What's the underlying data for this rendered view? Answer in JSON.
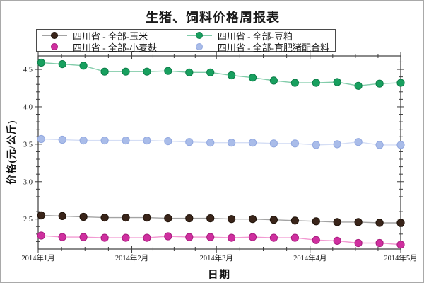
{
  "figure": {
    "title": "生猪、饲料价格周报表",
    "xlabel": "日期",
    "ylabel": "价格(元/公斤)"
  },
  "chart_data": {
    "type": "line",
    "title": "生猪、饲料价格周报表",
    "xlabel": "日期",
    "ylabel": "价格(元/公斤)",
    "x_frequency": "weekly",
    "x_days": [
      1,
      8,
      15,
      22,
      29,
      36,
      43,
      50,
      57,
      64,
      71,
      78,
      85,
      92,
      99,
      106,
      113,
      120
    ],
    "x_major_ticks": [
      {
        "day": 0,
        "label": "2014年1月"
      },
      {
        "day": 31,
        "label": "2014年2月"
      },
      {
        "day": 59,
        "label": "2014年3月"
      },
      {
        "day": 90,
        "label": "2014年4月"
      },
      {
        "day": 120,
        "label": "2014年5月"
      }
    ],
    "xlim_days": [
      0,
      120
    ],
    "ylim": [
      2.1,
      4.68
    ],
    "y_major_ticks": [
      2.5,
      3.0,
      3.5,
      4.0,
      4.5
    ],
    "y_minor_step": 0.1,
    "grid": false,
    "legend_position": "top",
    "series": [
      {
        "name": "四川省 - 全部-玉米",
        "marker_color": "#3a251a",
        "edge_color": "#1f1208",
        "line_color": "#a3a3a3",
        "values": [
          2.55,
          2.54,
          2.53,
          2.52,
          2.52,
          2.52,
          2.51,
          2.51,
          2.51,
          2.5,
          2.5,
          2.49,
          2.48,
          2.47,
          2.46,
          2.46,
          2.45,
          2.45
        ]
      },
      {
        "name": "四川省 - 全部-小麦麸",
        "marker_color": "#cf2f9f",
        "edge_color": "#a81d7e",
        "line_color": "#f29ad2",
        "values": [
          2.28,
          2.26,
          2.26,
          2.25,
          2.25,
          2.25,
          2.27,
          2.26,
          2.26,
          2.25,
          2.26,
          2.25,
          2.25,
          2.22,
          2.21,
          2.18,
          2.18,
          2.16
        ]
      },
      {
        "name": "四川省 - 全部-豆粕",
        "marker_color": "#18a05f",
        "edge_color": "#0d7e49",
        "line_color": "#82ccaa",
        "values": [
          4.59,
          4.57,
          4.55,
          4.47,
          4.47,
          4.47,
          4.48,
          4.46,
          4.46,
          4.42,
          4.39,
          4.35,
          4.32,
          4.32,
          4.33,
          4.28,
          4.31,
          4.32
        ]
      },
      {
        "name": "四川省 - 全部-育肥猪配合料",
        "marker_color": "#a9bce9",
        "edge_color": "#92a8e0",
        "line_color": "#d5def5",
        "values": [
          3.57,
          3.56,
          3.55,
          3.55,
          3.55,
          3.55,
          3.54,
          3.53,
          3.52,
          3.52,
          3.52,
          3.51,
          3.51,
          3.49,
          3.5,
          3.53,
          3.49,
          3.49
        ]
      }
    ]
  }
}
